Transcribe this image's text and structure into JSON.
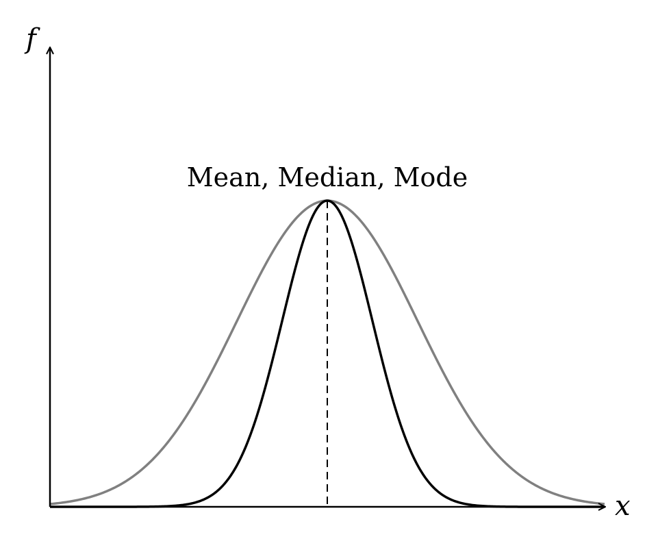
{
  "diagram": {
    "y_axis_label": "f",
    "x_axis_label": "x",
    "annotation": "Mean, Median, Mode",
    "curves": [
      {
        "id": "wide",
        "color": "#808080",
        "relative_spread": 2.0
      },
      {
        "id": "narrow",
        "color": "#000000",
        "relative_spread": 1.0
      }
    ],
    "center_line": {
      "style": "dashed",
      "color": "#000000"
    }
  }
}
